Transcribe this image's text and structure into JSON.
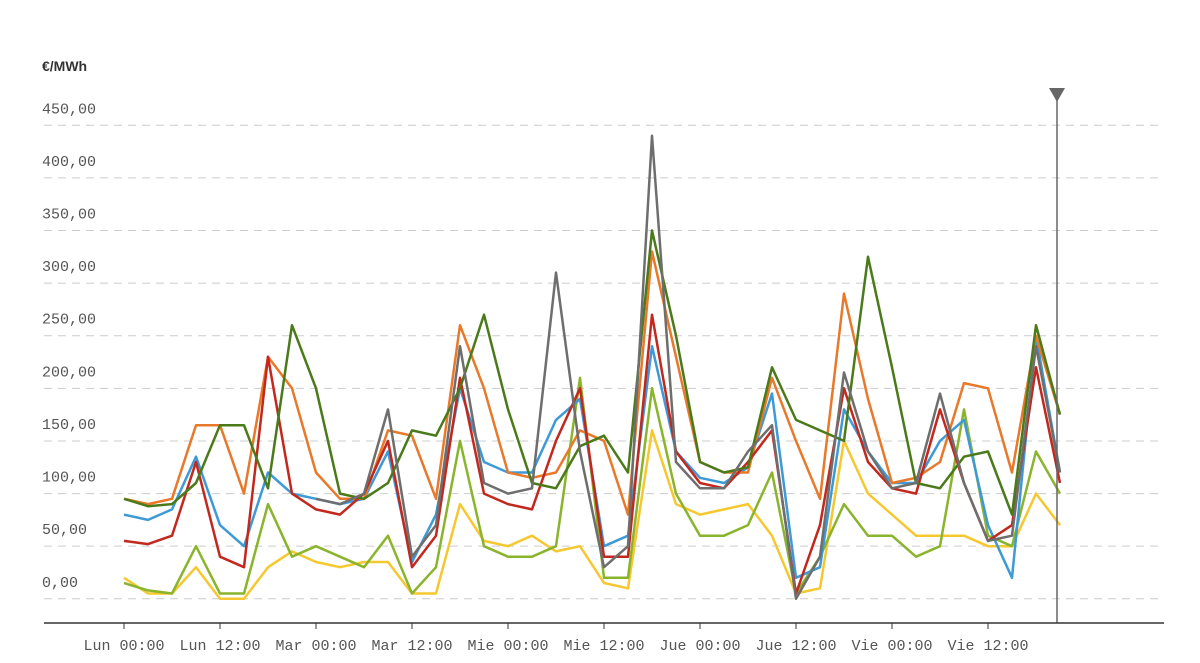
{
  "chart_data": {
    "type": "line",
    "y_label": "€/MWh",
    "x": [
      0,
      3,
      6,
      9,
      12,
      15,
      18,
      21,
      24,
      27,
      30,
      33,
      36,
      39,
      42,
      45,
      48,
      51,
      54,
      57,
      60,
      63,
      66,
      69,
      72,
      75,
      78,
      81,
      84,
      87,
      90,
      93,
      96,
      99,
      102,
      105,
      108,
      111,
      114,
      117
    ],
    "xlim": [
      -10,
      130
    ],
    "xticks": [
      {
        "value": 0,
        "label": "Lun 00:00"
      },
      {
        "value": 12,
        "label": "Lun 12:00"
      },
      {
        "value": 24,
        "label": "Mar 00:00"
      },
      {
        "value": 36,
        "label": "Mar 12:00"
      },
      {
        "value": 48,
        "label": "Mie 00:00"
      },
      {
        "value": 60,
        "label": "Mie 12:00"
      },
      {
        "value": 72,
        "label": "Jue 00:00"
      },
      {
        "value": 84,
        "label": "Jue 12:00"
      },
      {
        "value": 96,
        "label": "Vie 00:00"
      },
      {
        "value": 108,
        "label": "Vie 12:00"
      }
    ],
    "ylim": [
      -23,
      474
    ],
    "yticks": [
      {
        "value": 0,
        "label": "0,00"
      },
      {
        "value": 50,
        "label": "50,00"
      },
      {
        "value": 100,
        "label": "100,00"
      },
      {
        "value": 150,
        "label": "150,00"
      },
      {
        "value": 200,
        "label": "200,00"
      },
      {
        "value": 250,
        "label": "250,00"
      },
      {
        "value": 300,
        "label": "300,00"
      },
      {
        "value": 350,
        "label": "350,00"
      },
      {
        "value": 400,
        "label": "400,00"
      },
      {
        "value": 450,
        "label": "450,00"
      }
    ],
    "grid": true,
    "series": [
      {
        "color": "#f5c830",
        "values": [
          20,
          5,
          5,
          30,
          0,
          0,
          30,
          45,
          35,
          30,
          35,
          35,
          5,
          5,
          90,
          55,
          50,
          60,
          45,
          50,
          15,
          10,
          160,
          90,
          80,
          85,
          90,
          60,
          5,
          10,
          150,
          100,
          80,
          60,
          60,
          60,
          50,
          50,
          100,
          70
        ]
      },
      {
        "color": "#8bb42d",
        "values": [
          15,
          8,
          5,
          50,
          5,
          5,
          90,
          40,
          50,
          40,
          30,
          60,
          5,
          30,
          150,
          50,
          40,
          40,
          50,
          210,
          20,
          20,
          200,
          100,
          60,
          60,
          70,
          120,
          5,
          40,
          90,
          60,
          60,
          40,
          50,
          180,
          60,
          50,
          140,
          100
        ]
      },
      {
        "color": "#3d9ad6",
        "values": [
          80,
          75,
          85,
          135,
          70,
          50,
          120,
          100,
          95,
          90,
          95,
          140,
          35,
          80,
          200,
          130,
          120,
          120,
          170,
          190,
          50,
          60,
          240,
          140,
          115,
          110,
          125,
          195,
          20,
          30,
          180,
          140,
          110,
          110,
          150,
          170,
          70,
          20,
          250,
          120
        ]
      },
      {
        "color": "#e8792a",
        "values": [
          95,
          90,
          95,
          165,
          165,
          100,
          230,
          200,
          120,
          95,
          95,
          160,
          155,
          95,
          260,
          200,
          120,
          115,
          120,
          160,
          150,
          80,
          330,
          230,
          130,
          120,
          120,
          210,
          150,
          95,
          290,
          190,
          110,
          115,
          130,
          205,
          200,
          120,
          250,
          175
        ]
      },
      {
        "color": "#c3281e",
        "values": [
          55,
          52,
          60,
          130,
          40,
          30,
          230,
          100,
          85,
          80,
          100,
          150,
          30,
          60,
          210,
          100,
          90,
          85,
          150,
          200,
          40,
          40,
          270,
          140,
          110,
          105,
          130,
          160,
          5,
          70,
          200,
          130,
          105,
          100,
          180,
          110,
          55,
          70,
          220,
          110
        ]
      },
      {
        "color": "#4a7a1a",
        "values": [
          95,
          88,
          90,
          110,
          165,
          165,
          105,
          260,
          200,
          100,
          95,
          110,
          160,
          155,
          200,
          270,
          180,
          110,
          105,
          145,
          155,
          120,
          350,
          250,
          130,
          120,
          125,
          220,
          170,
          160,
          150,
          325,
          220,
          110,
          105,
          135,
          140,
          80,
          260,
          175
        ]
      },
      {
        "color": "#6e6e6e",
        "values": [
          null,
          null,
          null,
          null,
          null,
          null,
          null,
          null,
          95,
          90,
          100,
          180,
          40,
          70,
          240,
          110,
          100,
          105,
          310,
          140,
          30,
          50,
          440,
          130,
          105,
          105,
          140,
          165,
          0,
          40,
          215,
          140,
          105,
          110,
          195,
          110,
          55,
          60,
          240,
          120
        ]
      }
    ]
  }
}
